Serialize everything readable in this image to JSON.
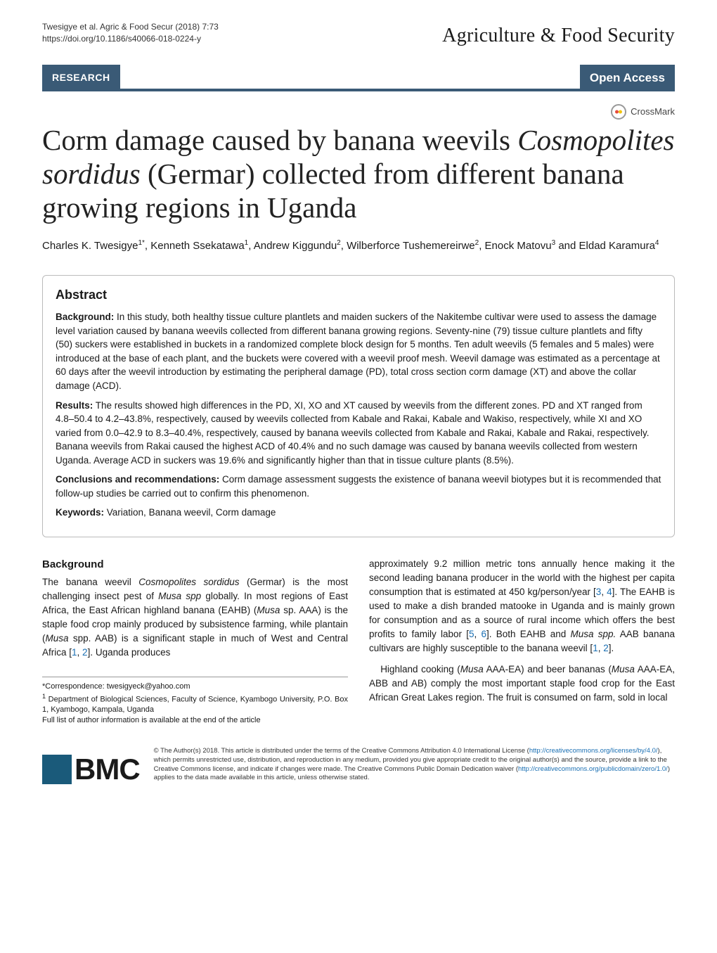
{
  "header": {
    "citation_line1": "Twesigye et al. Agric & Food Secur     (2018) 7:73",
    "citation_line2": "https://doi.org/10.1186/s40066-018-0224-y",
    "journal_name": "Agriculture & Food Security"
  },
  "badge": {
    "research": "RESEARCH",
    "open_access": "Open Access"
  },
  "crossmark_label": "CrossMark",
  "title_html": "Corm damage caused by banana weevils <em>Cosmopolites sordidus</em> (Germar) collected from different banana growing regions in Uganda",
  "authors_html": "Charles K. Twesigye<sup>1*</sup>, Kenneth Ssekatawa<sup>1</sup>, Andrew Kiggundu<sup>2</sup>, Wilberforce Tushemereirwe<sup>2</sup>, Enock Matovu<sup>3</sup> and Eldad Karamura<sup>4</sup>",
  "abstract": {
    "heading": "Abstract",
    "background_label": "Background:",
    "background_text": " In this study, both healthy tissue culture plantlets and maiden suckers of the Nakitembe cultivar were used to assess the damage level variation caused by banana weevils collected from different banana growing regions. Seventy-nine (79) tissue culture plantlets and fifty (50) suckers were established in buckets in a randomized complete block design for 5 months. Ten adult weevils (5 females and 5 males) were introduced at the base of each plant, and the buckets were covered with a weevil proof mesh. Weevil damage was estimated as a percentage at 60 days after the weevil introduction by estimating the peripheral damage (PD), total cross section corm damage (XT) and above the collar damage (ACD).",
    "results_label": "Results:",
    "results_text": " The results showed high differences in the PD, XI, XO and XT caused by weevils from the different zones. PD and XT ranged from 4.8–50.4 to 4.2–43.8%, respectively, caused by weevils collected from Kabale and Rakai, Kabale and Wakiso, respectively, while XI and XO varied from 0.0–42.9 to 8.3–40.4%, respectively, caused by banana weevils collected from Kabale and Rakai, Kabale and Rakai, respectively. Banana weevils from Rakai caused the highest ACD of 40.4% and no such damage was caused by banana weevils collected from western Uganda. Average ACD in suckers was 19.6% and significantly higher than that in tissue culture plants (8.5%).",
    "conclusions_label": "Conclusions and recommendations:",
    "conclusions_text": " Corm damage assessment suggests the existence of banana weevil biotypes but it is recommended that follow-up studies be carried out to confirm this phenomenon.",
    "keywords_label": "Keywords:",
    "keywords_text": " Variation, Banana weevil, Corm damage"
  },
  "body": {
    "background_heading": "Background",
    "p1_html": "The banana weevil <em>Cosmopolites sordidus</em> (Germar) is the most challenging insect pest of <em>Musa spp</em> globally. In most regions of East Africa, the East African highland banana (EAHB) (<em>Musa</em> sp. AAA) is the staple food crop mainly produced by subsistence farming, while plantain (<em>Musa</em> spp. AAB) is a significant staple in much of West and Central Africa [<span class=\"cite\">1</span>, <span class=\"cite\">2</span>]. Uganda produces",
    "p2_html": "approximately 9.2 million metric tons annually hence making it the second leading banana producer in the world with the highest per capita consumption that is estimated at 450 kg/person/year [<span class=\"cite\">3</span>, <span class=\"cite\">4</span>]. The EAHB is used to make a dish branded matooke in Uganda and is mainly grown for consumption and as a source of rural income which offers the best profits to family labor [<span class=\"cite\">5</span>, <span class=\"cite\">6</span>]. Both EAHB and <em>Musa spp.</em> AAB banana cultivars are highly susceptible to the banana weevil [<span class=\"cite\">1</span>, <span class=\"cite\">2</span>].",
    "p3_html": "Highland cooking (<em>Musa</em> AAA-EA) and beer bananas (<em>Musa</em> AAA-EA, ABB and AB) comply the most important staple food crop for the East African Great Lakes region. The fruit is consumed on farm, sold in local"
  },
  "correspondence": {
    "line1": "*Correspondence:  twesigyeck@yahoo.com",
    "line2_html": "<sup>1</sup> Department of Biological Sciences, Faculty of Science, Kyambogo University, P.O. Box 1, Kyambogo, Kampala, Uganda",
    "line3": "Full list of author information is available at the end of the article"
  },
  "footer": {
    "bmc": "BMC",
    "license_html": "© The Author(s) 2018. This article is distributed under the terms of the Creative Commons Attribution 4.0 International License (<a href=\"#\">http://creativecommons.org/licenses/by/4.0/</a>), which permits unrestricted use, distribution, and reproduction in any medium, provided you give appropriate credit to the original author(s) and the source, provide a link to the Creative Commons license, and indicate if changes were made. The Creative Commons Public Domain Dedication waiver (<a href=\"#\">http://creativecommons.org/publicdomain/zero/1.0/</a>) applies to the data made available in this article, unless otherwise stated."
  },
  "colors": {
    "badge_bg": "#3a5a76",
    "link": "#1a6fb3",
    "bmc_mark": "#1a5a7a"
  }
}
